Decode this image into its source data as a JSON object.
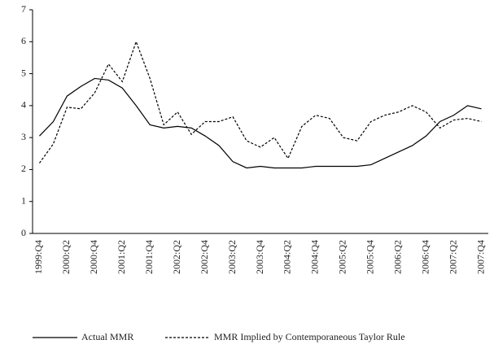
{
  "chart_data": {
    "type": "line",
    "categories": [
      "1999:Q4",
      null,
      "2000:Q2",
      null,
      "2000:Q4",
      null,
      "2001:Q2",
      null,
      "2001:Q4",
      null,
      "2002:Q2",
      null,
      "2002:Q4",
      null,
      "2003:Q2",
      null,
      "2003:Q4",
      null,
      "2004:Q2",
      null,
      "2004:Q4",
      null,
      "2005:Q2",
      null,
      "2005:Q4",
      null,
      "2006:Q2",
      null,
      "2006:Q4",
      null,
      "2007:Q2",
      null,
      "2007:Q4"
    ],
    "series": [
      {
        "name": "Actual MMR",
        "color": "#000000",
        "dash": false,
        "values": [
          3.05,
          3.5,
          4.3,
          4.6,
          4.85,
          4.8,
          4.55,
          4.0,
          3.4,
          3.3,
          3.35,
          3.3,
          3.05,
          2.75,
          2.25,
          2.05,
          2.1,
          2.05,
          2.05,
          2.05,
          2.1,
          2.1,
          2.1,
          2.1,
          2.15,
          2.35,
          2.55,
          2.75,
          3.05,
          3.5,
          3.7,
          4.0,
          3.9
        ]
      },
      {
        "name": "MMR Implied by Contemporaneous Taylor Rule",
        "color": "#000000",
        "dash": true,
        "values": [
          2.2,
          2.8,
          3.95,
          3.9,
          4.4,
          5.3,
          4.75,
          6.0,
          4.85,
          3.4,
          3.8,
          3.1,
          3.5,
          3.5,
          3.65,
          2.9,
          2.7,
          3.0,
          2.35,
          3.35,
          3.7,
          3.6,
          3.0,
          2.9,
          3.5,
          3.7,
          3.8,
          4.0,
          3.8,
          3.3,
          3.55,
          3.6,
          3.5
        ]
      }
    ],
    "ylim": [
      0,
      7
    ],
    "yticks": [
      0,
      1,
      2,
      3,
      4,
      5,
      6,
      7
    ],
    "grid": false
  }
}
